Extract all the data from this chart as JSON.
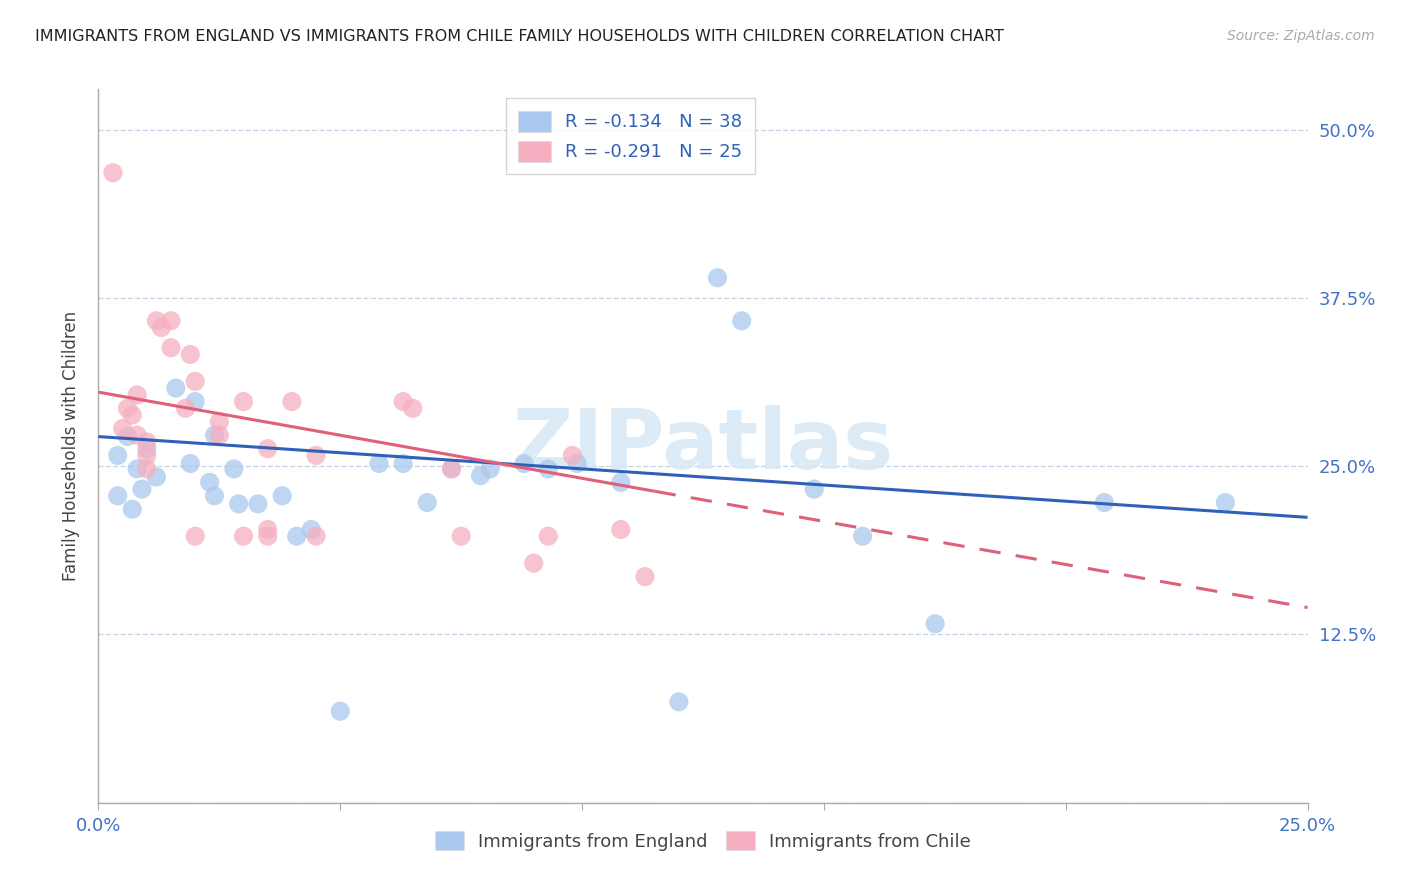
{
  "title": "IMMIGRANTS FROM ENGLAND VS IMMIGRANTS FROM CHILE FAMILY HOUSEHOLDS WITH CHILDREN CORRELATION CHART",
  "source": "Source: ZipAtlas.com",
  "ylabel": "Family Households with Children",
  "xlim": [
    0.0,
    0.25
  ],
  "ylim": [
    0.0,
    0.53
  ],
  "england_R": "-0.134",
  "england_N": "38",
  "chile_R": "-0.291",
  "chile_N": "25",
  "england_color": "#aac9ee",
  "chile_color": "#f5afc0",
  "england_line_color": "#3060b8",
  "chile_line_color": "#e0607a",
  "watermark_text": "ZIPatlas",
  "england_scatter_x": [
    0.004,
    0.006,
    0.008,
    0.01,
    0.012,
    0.004,
    0.007,
    0.009,
    0.016,
    0.02,
    0.024,
    0.019,
    0.023,
    0.028,
    0.024,
    0.029,
    0.033,
    0.038,
    0.041,
    0.044,
    0.058,
    0.063,
    0.073,
    0.068,
    0.079,
    0.081,
    0.088,
    0.093,
    0.099,
    0.108,
    0.128,
    0.133,
    0.148,
    0.158,
    0.173,
    0.208,
    0.233,
    0.05,
    0.12
  ],
  "england_scatter_y": [
    0.258,
    0.272,
    0.248,
    0.263,
    0.242,
    0.228,
    0.218,
    0.233,
    0.308,
    0.298,
    0.273,
    0.252,
    0.238,
    0.248,
    0.228,
    0.222,
    0.222,
    0.228,
    0.198,
    0.203,
    0.252,
    0.252,
    0.248,
    0.223,
    0.243,
    0.248,
    0.252,
    0.248,
    0.252,
    0.238,
    0.39,
    0.358,
    0.233,
    0.198,
    0.133,
    0.223,
    0.223,
    0.068,
    0.075
  ],
  "chile_scatter_x": [
    0.003,
    0.005,
    0.006,
    0.007,
    0.008,
    0.008,
    0.01,
    0.01,
    0.01,
    0.012,
    0.013,
    0.015,
    0.015,
    0.019,
    0.018,
    0.02,
    0.025,
    0.025,
    0.03,
    0.035,
    0.04,
    0.045,
    0.063,
    0.065,
    0.073,
    0.075,
    0.09,
    0.093,
    0.098,
    0.108,
    0.113,
    0.02,
    0.03,
    0.035,
    0.035,
    0.045
  ],
  "chile_scatter_y": [
    0.468,
    0.278,
    0.293,
    0.288,
    0.303,
    0.273,
    0.268,
    0.258,
    0.248,
    0.358,
    0.353,
    0.358,
    0.338,
    0.333,
    0.293,
    0.313,
    0.283,
    0.273,
    0.298,
    0.263,
    0.298,
    0.258,
    0.298,
    0.293,
    0.248,
    0.198,
    0.178,
    0.198,
    0.258,
    0.203,
    0.168,
    0.198,
    0.198,
    0.203,
    0.198,
    0.198
  ],
  "england_line_x0": 0.0,
  "england_line_x1": 0.25,
  "england_line_y0": 0.272,
  "england_line_y1": 0.212,
  "chile_line_x0": 0.0,
  "chile_line_x1": 0.25,
  "chile_line_y0": 0.305,
  "chile_line_y1": 0.145
}
